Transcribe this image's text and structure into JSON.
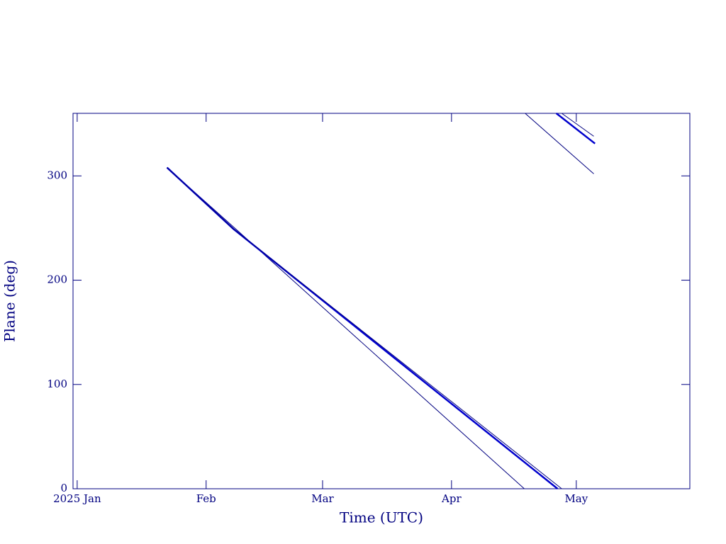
{
  "chart_data": {
    "type": "line",
    "x_label": "Time (UTC)",
    "y_label": "Plane (deg)",
    "xlim": [
      -1,
      147.3
    ],
    "xticks": [
      {
        "value": 0,
        "label": "2025 Jan"
      },
      {
        "value": 31,
        "label": "Feb"
      },
      {
        "value": 59,
        "label": "Mar"
      },
      {
        "value": 90,
        "label": "Apr"
      },
      {
        "value": 120,
        "label": "May"
      }
    ],
    "ylim": [
      0,
      360
    ],
    "yticks": [
      0,
      100,
      200,
      300
    ],
    "series": [
      {
        "color": "#000080",
        "width": 1,
        "x": [
          21.6,
          37.6,
          107.5,
          null,
          107.7,
          124.2
        ],
        "values": [
          308,
          251,
          0,
          null,
          360,
          302
        ]
      },
      {
        "color": "#0000cd",
        "width": 2.5,
        "x": [
          21.6,
          37.6,
          115.5,
          null,
          115.2,
          124.5
        ],
        "values": [
          308,
          249,
          0,
          null,
          360,
          331
        ]
      },
      {
        "color": "#000080",
        "width": 1,
        "x": [
          21.6,
          37.6,
          116.5,
          null,
          116.5,
          124.2
        ],
        "values": [
          308,
          249,
          0,
          null,
          360,
          338
        ]
      }
    ]
  }
}
